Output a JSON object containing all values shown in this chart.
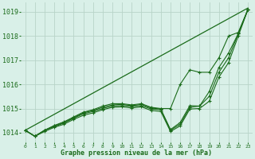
{
  "title": "Graphe pression niveau de la mer (hPa)",
  "background_color": "#d9f0e8",
  "grid_color": "#b8d4c8",
  "line_color": "#1a6b1a",
  "ylim": [
    1013.6,
    1019.4
  ],
  "yticks": [
    1014,
    1015,
    1016,
    1017,
    1018,
    1019
  ],
  "x_labels": [
    "0",
    "1",
    "2",
    "3",
    "4",
    "5",
    "6",
    "7",
    "8",
    "9",
    "10",
    "11",
    "12",
    "13",
    "14",
    "15",
    "16",
    "17",
    "18",
    "19",
    "20",
    "21",
    "22",
    "23"
  ],
  "series": [
    [
      1014.1,
      1013.85,
      1014.1,
      1014.3,
      1014.45,
      1014.65,
      1014.85,
      1014.95,
      1015.1,
      1015.2,
      1015.2,
      1015.15,
      1015.2,
      1015.05,
      1015.0,
      1015.0,
      1016.0,
      1016.6,
      1016.5,
      1016.5,
      1017.1,
      1018.0,
      1018.15,
      1019.1
    ],
    [
      1014.1,
      1013.85,
      1014.1,
      1014.25,
      1014.4,
      1014.6,
      1014.78,
      1014.88,
      1015.0,
      1015.1,
      1015.12,
      1015.08,
      1015.12,
      1014.98,
      1014.95,
      1014.1,
      1014.35,
      1015.05,
      1015.1,
      1015.5,
      1016.5,
      1017.1,
      1018.1,
      1019.1
    ],
    [
      1014.1,
      1013.85,
      1014.1,
      1014.28,
      1014.42,
      1014.62,
      1014.82,
      1014.92,
      1015.05,
      1015.15,
      1015.17,
      1015.12,
      1015.17,
      1015.02,
      1014.98,
      1014.13,
      1014.42,
      1015.12,
      1015.1,
      1015.7,
      1016.7,
      1017.3,
      1018.1,
      1019.1
    ],
    [
      1014.1,
      1013.85,
      1014.05,
      1014.22,
      1014.35,
      1014.55,
      1014.72,
      1014.82,
      1014.95,
      1015.05,
      1015.07,
      1015.02,
      1015.07,
      1014.92,
      1014.88,
      1014.05,
      1014.28,
      1014.98,
      1015.0,
      1015.3,
      1016.3,
      1016.9,
      1018.0,
      1019.1
    ]
  ],
  "marker_series": [
    1014.1,
    1013.85,
    1014.1,
    1014.3,
    1014.45,
    1014.65,
    1014.85,
    1014.95,
    1015.1,
    1015.2,
    1015.2,
    1015.15,
    1015.2,
    1015.05,
    1015.0,
    1015.0,
    1016.0,
    1016.6,
    1016.5,
    1016.5,
    1017.1,
    1018.0,
    1018.15,
    1019.1
  ],
  "linear_line": [
    1014.1,
    1014.32,
    1014.54,
    1014.76,
    1014.98,
    1015.2,
    1015.42,
    1015.64,
    1015.86,
    1016.08,
    1016.3,
    1016.52,
    1016.74,
    1016.96,
    1017.18,
    1017.4,
    1017.62,
    1017.84,
    1018.06,
    1018.28,
    1018.5,
    1018.72,
    1018.94,
    1019.16
  ]
}
